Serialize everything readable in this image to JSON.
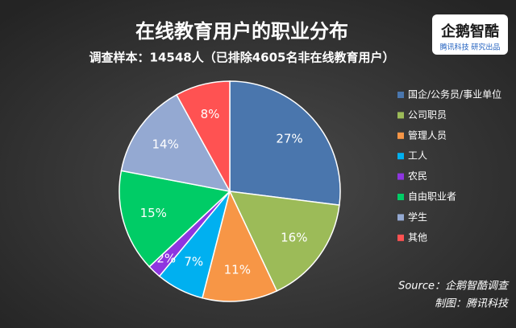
{
  "chart_data": {
    "type": "pie",
    "title": "在线教育用户的职业分布",
    "subtitle": "调查样本：14548人（已排除4605名非在线教育用户）",
    "categories": [
      "国企/公务员/事业单位",
      "公司职员",
      "管理人员",
      "工人",
      "农民",
      "自由职业者",
      "学生",
      "其他"
    ],
    "values": [
      27,
      16,
      11,
      7,
      2,
      15,
      14,
      8
    ],
    "value_labels": [
      "27%",
      "16%",
      "11%",
      "7%",
      "2%",
      "15%",
      "14%",
      "8%"
    ],
    "colors": [
      "#4a76ad",
      "#9cbb58",
      "#f79646",
      "#00b0f0",
      "#8e35e0",
      "#00cc66",
      "#94a9d2",
      "#ff5252"
    ],
    "legend": "right",
    "source": "Source：企鹅智酷调查",
    "credit": "制图：腾讯科技"
  },
  "logo": {
    "name": "企鹅智酷",
    "tagline": "腾讯科技 研究出品"
  }
}
